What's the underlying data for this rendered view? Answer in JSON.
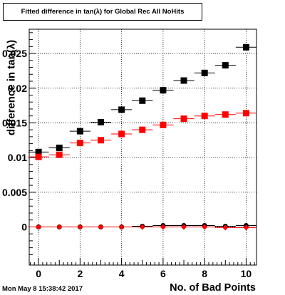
{
  "title": "Fitted difference in tan(λ) for Global Rec All NoHits",
  "timestamp": "Mon May  8 15:38:42 2017",
  "chart_data": {
    "type": "scatter",
    "xlabel": "No. of Bad Points",
    "ylabel": "difference in tan(λ)",
    "xlim": [
      -0.45,
      10.5
    ],
    "ylim": [
      -0.0055,
      0.0285
    ],
    "x_ticks": [
      "0",
      "2",
      "4",
      "6",
      "8",
      "10"
    ],
    "y_ticks": [
      "0",
      "0.005",
      "0.01",
      "0.015",
      "0.02",
      "0.025"
    ],
    "grid": true,
    "series": [
      {
        "marker": "square",
        "color": "#000000",
        "x": [
          0,
          1,
          2,
          3,
          4,
          5,
          6,
          7,
          8,
          9,
          10
        ],
        "y": [
          0.0108,
          0.0114,
          0.0138,
          0.0151,
          0.0169,
          0.0182,
          0.0197,
          0.0211,
          0.0222,
          0.0233,
          0.0259
        ]
      },
      {
        "marker": "square",
        "color": "#ff0000",
        "x": [
          0,
          1,
          2,
          3,
          4,
          5,
          6,
          7,
          8,
          9,
          10
        ],
        "y": [
          0.0101,
          0.0104,
          0.0121,
          0.0125,
          0.0134,
          0.014,
          0.0147,
          0.0156,
          0.016,
          0.0162,
          0.0164
        ]
      },
      {
        "marker": "circle",
        "color": "#000000",
        "x": [
          0,
          1,
          2,
          3,
          4,
          5,
          6,
          7,
          8,
          9,
          10
        ],
        "y": [
          0,
          0,
          0,
          0,
          0,
          0.0001,
          0.0002,
          0.0002,
          0.0002,
          0.0001,
          0.0002
        ]
      },
      {
        "marker": "diamond",
        "color": "#ff0000",
        "x": [
          0,
          1,
          2,
          3,
          4,
          5,
          6,
          7,
          8,
          9,
          10
        ],
        "y": [
          0,
          0,
          0,
          0,
          0,
          0,
          0,
          0,
          0,
          -0.0001,
          -0.0001
        ]
      }
    ]
  }
}
